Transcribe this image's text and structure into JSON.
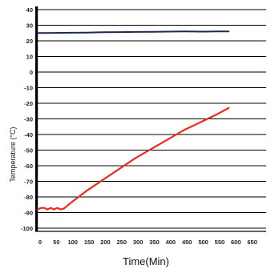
{
  "chart_data": {
    "type": "line",
    "title": "",
    "xlabel": "Time(Min)",
    "ylabel": "Temperature (°C)",
    "xlim": [
      0,
      700
    ],
    "ylim": [
      -100,
      40
    ],
    "x_ticks": [
      0,
      50,
      100,
      150,
      200,
      250,
      300,
      350,
      400,
      450,
      500,
      550,
      600,
      650
    ],
    "y_ticks": [
      40,
      30,
      20,
      10,
      0,
      -10,
      -20,
      -30,
      -40,
      -50,
      -60,
      -70,
      -80,
      -90,
      -100
    ],
    "grid": "horizontal",
    "legend": "none",
    "series": [
      {
        "color": "#1a2a4a",
        "x": [
          0,
          50,
          100,
          150,
          200,
          250,
          300,
          350,
          400,
          450,
          500,
          550,
          585
        ],
        "y": [
          25,
          25.1,
          25.2,
          25.3,
          25.5,
          25.6,
          25.7,
          25.8,
          25.9,
          26.0,
          25.9,
          26.0,
          26.0
        ]
      },
      {
        "color": "#ee2b1b",
        "x": [
          0,
          10,
          20,
          30,
          40,
          50,
          60,
          70,
          80,
          100,
          150,
          200,
          250,
          300,
          350,
          400,
          450,
          500,
          550,
          585
        ],
        "y": [
          -88,
          -87,
          -87,
          -88,
          -87,
          -88,
          -87,
          -88,
          -87.5,
          -84,
          -76,
          -69,
          -62,
          -55,
          -49,
          -43,
          -37,
          -32,
          -27,
          -23
        ]
      }
    ]
  }
}
